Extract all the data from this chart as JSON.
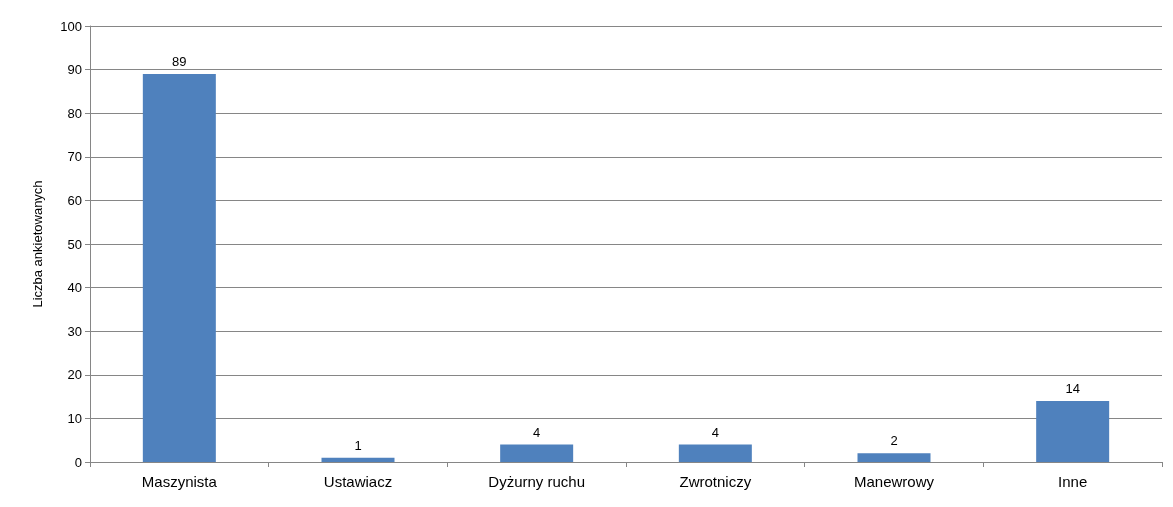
{
  "chart_data": {
    "type": "bar",
    "ylabel": "Liczba ankietowanych",
    "categories": [
      "Maszynista",
      "Ustawiacz",
      "Dyżurny ruchu",
      "Zwrotniczy",
      "Manewrowy",
      "Inne"
    ],
    "values": [
      89,
      1,
      4,
      4,
      2,
      14
    ],
    "color": "#4f81bd",
    "ylim": [
      0,
      100
    ],
    "yticks": [
      0,
      10,
      20,
      30,
      40,
      50,
      60,
      70,
      80,
      90,
      100
    ],
    "grid": "y",
    "data_labels": true
  }
}
